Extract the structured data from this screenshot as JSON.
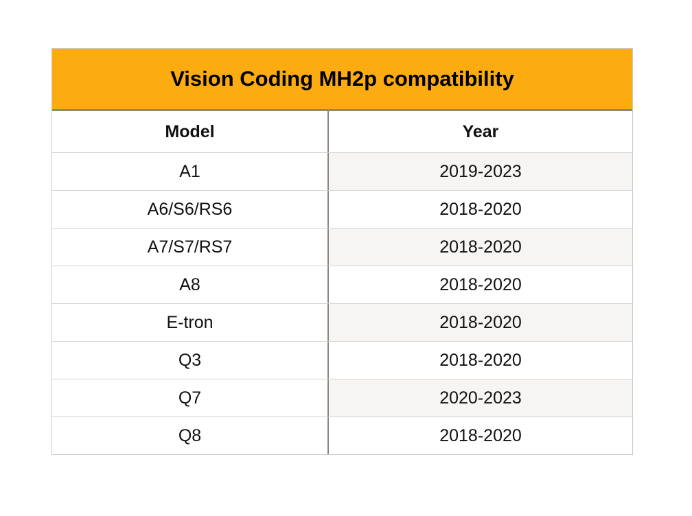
{
  "title": "Vision Coding MH2p compatibility",
  "table": {
    "columns": [
      "Model",
      "Year"
    ],
    "rows": [
      {
        "model": "A1",
        "year": "2019-2023"
      },
      {
        "model": "A6/S6/RS6",
        "year": "2018-2020"
      },
      {
        "model": "A7/S7/RS7",
        "year": "2018-2020"
      },
      {
        "model": "A8",
        "year": "2018-2020"
      },
      {
        "model": "E-tron",
        "year": "2018-2020"
      },
      {
        "model": "Q3",
        "year": "2018-2020"
      },
      {
        "model": "Q7",
        "year": "2020-2023"
      },
      {
        "model": "Q8",
        "year": "2018-2020"
      }
    ]
  },
  "colors": {
    "header_bg": "#FCAC11",
    "header_text": "#000000",
    "shaded_cell_bg": "#F6F5F3",
    "divider_dark": "#8B8680",
    "grid_line": "#D2D2D2",
    "outer_border": "#C9C9C9",
    "page_bg": "#FFFFFF"
  }
}
